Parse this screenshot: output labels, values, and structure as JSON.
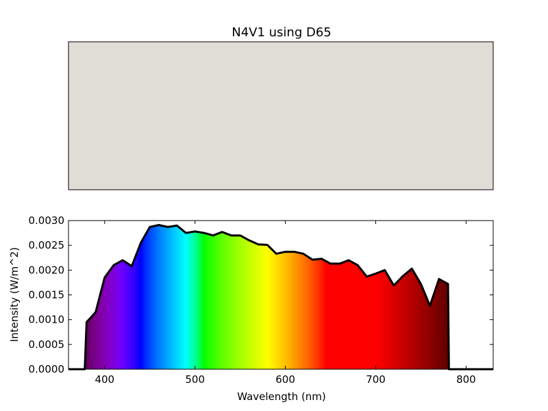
{
  "chart_data": [
    {
      "type": "swatch",
      "title": "N4V1 using D65",
      "swatch_color": "#e0ddd7"
    },
    {
      "type": "area",
      "title": "",
      "xlabel": "Wavelength (nm)",
      "ylabel": "Intensity (W/m^2)",
      "xlim": [
        360,
        830
      ],
      "ylim": [
        0.0,
        0.003
      ],
      "xticks": [
        "400",
        "500",
        "600",
        "700",
        "800"
      ],
      "yticks": [
        "0.0000",
        "0.0005",
        "0.0010",
        "0.0015",
        "0.0020",
        "0.0025",
        "0.0030"
      ],
      "grid": false,
      "series": [
        {
          "x": [
            360,
            370,
            378,
            380,
            390,
            400,
            410,
            420,
            430,
            440,
            450,
            460,
            470,
            480,
            490,
            500,
            510,
            520,
            530,
            540,
            550,
            560,
            570,
            580,
            590,
            600,
            610,
            620,
            630,
            640,
            650,
            660,
            670,
            680,
            690,
            700,
            710,
            720,
            730,
            740,
            750,
            760,
            770,
            780,
            781,
            790,
            800,
            830
          ],
          "y": [
            0.0,
            0.0,
            0.0,
            0.00095,
            0.00115,
            0.00185,
            0.0021,
            0.0022,
            0.00208,
            0.00255,
            0.00287,
            0.00291,
            0.00287,
            0.0029,
            0.00275,
            0.00278,
            0.00275,
            0.0027,
            0.00277,
            0.0027,
            0.0027,
            0.0026,
            0.00252,
            0.00251,
            0.00233,
            0.00237,
            0.00237,
            0.00233,
            0.00221,
            0.00223,
            0.00213,
            0.00213,
            0.0022,
            0.0021,
            0.00187,
            0.00193,
            0.002,
            0.00169,
            0.00188,
            0.00203,
            0.00172,
            0.00128,
            0.00182,
            0.00172,
            0.0,
            0.0,
            0.0,
            0.0
          ]
        }
      ]
    }
  ]
}
